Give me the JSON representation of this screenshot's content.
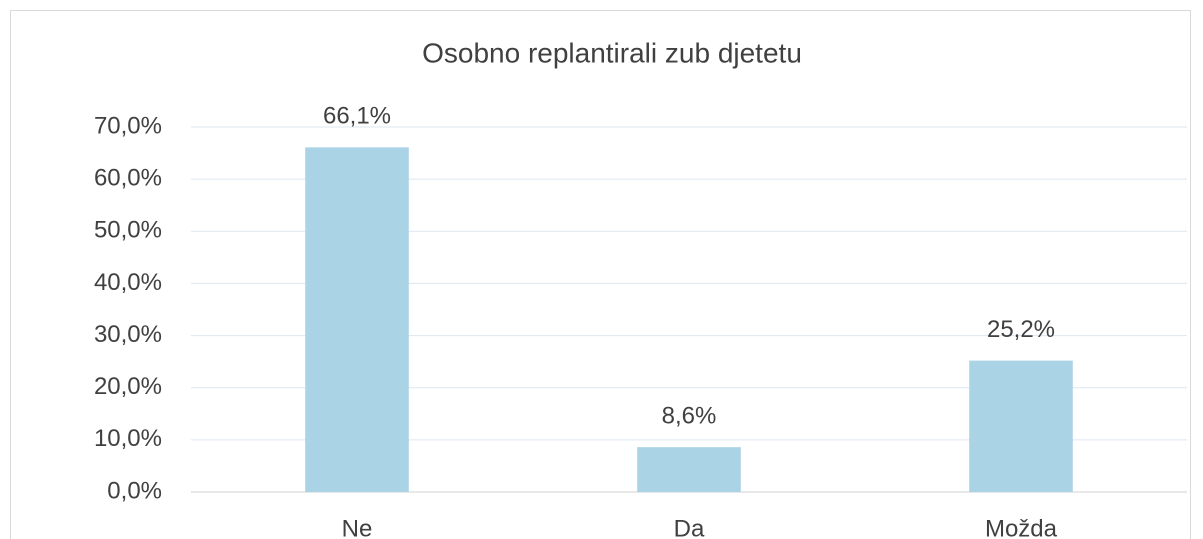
{
  "chart_data": {
    "type": "bar",
    "title": "Osobno replantirali zub djetetu",
    "categories": [
      "Ne",
      "Da",
      "Možda"
    ],
    "values": [
      66.1,
      8.6,
      25.2
    ],
    "value_labels": [
      "66,1%",
      "8,6%",
      "25,2%"
    ],
    "color": "#abd3e6",
    "ylim": [
      0,
      70
    ],
    "yticks": [
      {
        "value": 0,
        "label": "0,0%"
      },
      {
        "value": 10,
        "label": "10,0%"
      },
      {
        "value": 20,
        "label": "20,0%"
      },
      {
        "value": 30,
        "label": "30,0%"
      },
      {
        "value": 40,
        "label": "40,0%"
      },
      {
        "value": 50,
        "label": "50,0%"
      },
      {
        "value": 60,
        "label": "60,0%"
      },
      {
        "value": 70,
        "label": "70,0%"
      }
    ],
    "grid": true
  }
}
